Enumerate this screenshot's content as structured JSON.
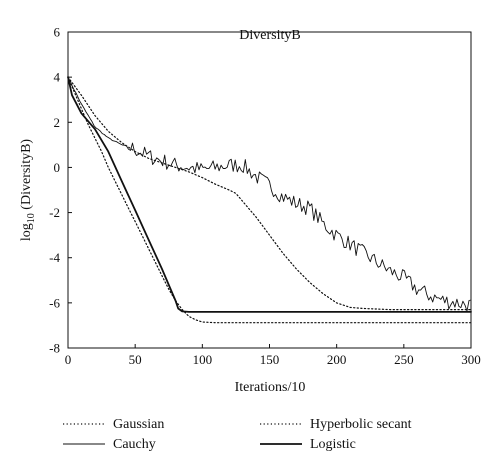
{
  "chart_data": {
    "type": "line",
    "title": "DiversityB",
    "xlabel": "Iterations/10",
    "ylabel_prefix": "log",
    "ylabel_sub": "10",
    "ylabel_suffix": " (DiversityB)",
    "xlim": [
      0,
      300
    ],
    "ylim": [
      -8,
      6
    ],
    "xticks": [
      0,
      50,
      100,
      150,
      200,
      250,
      300
    ],
    "yticks": [
      -8,
      -6,
      -4,
      -2,
      0,
      2,
      4,
      6
    ],
    "grid": false,
    "legend_position": "bottom",
    "series": [
      {
        "name": "Gaussian",
        "style": "dotted",
        "width": 1.2,
        "x": [
          0,
          5,
          10,
          15,
          20,
          25,
          30,
          35,
          40,
          45,
          50,
          55,
          60,
          65,
          70,
          75,
          80,
          85,
          90,
          95,
          100,
          110,
          125,
          150,
          200,
          250,
          300
        ],
        "y": [
          4.0,
          3.3,
          2.6,
          1.9,
          1.3,
          0.7,
          0.0,
          -0.6,
          -1.2,
          -1.8,
          -2.4,
          -3.0,
          -3.6,
          -4.2,
          -4.8,
          -5.4,
          -5.9,
          -6.3,
          -6.6,
          -6.75,
          -6.85,
          -6.88,
          -6.88,
          -6.88,
          -6.88,
          -6.88,
          -6.88
        ]
      },
      {
        "name": "Cauchy",
        "style": "solid",
        "width": 0.9,
        "noisy": true,
        "x": [
          0,
          10,
          20,
          30,
          40,
          50,
          60,
          70,
          80,
          90,
          100,
          110,
          120,
          130,
          140,
          150,
          160,
          170,
          180,
          190,
          200,
          210,
          220,
          230,
          240,
          250,
          260,
          270,
          280,
          290,
          300
        ],
        "y": [
          4.0,
          2.8,
          1.8,
          1.3,
          1.0,
          0.8,
          0.5,
          0.3,
          0.1,
          0.0,
          -0.1,
          0.0,
          0.1,
          0.1,
          -0.4,
          -0.8,
          -1.3,
          -1.6,
          -1.8,
          -2.5,
          -3.0,
          -3.4,
          -3.8,
          -4.2,
          -4.6,
          -4.9,
          -5.4,
          -5.7,
          -5.9,
          -6.0,
          -6.1
        ]
      },
      {
        "name": "Hyperbolic secant",
        "style": "dotted",
        "width": 1.2,
        "x": [
          0,
          10,
          20,
          30,
          40,
          50,
          60,
          70,
          80,
          90,
          100,
          110,
          120,
          125,
          130,
          140,
          150,
          160,
          170,
          180,
          190,
          200,
          210,
          220,
          240,
          260,
          280,
          300
        ],
        "y": [
          4.0,
          3.2,
          2.3,
          1.6,
          1.1,
          0.7,
          0.4,
          0.2,
          0.0,
          -0.2,
          -0.45,
          -0.75,
          -1.0,
          -1.15,
          -1.5,
          -2.2,
          -3.0,
          -3.8,
          -4.5,
          -5.1,
          -5.6,
          -6.0,
          -6.2,
          -6.25,
          -6.3,
          -6.3,
          -6.3,
          -6.3
        ]
      },
      {
        "name": "Logistic",
        "style": "solid",
        "width": 1.8,
        "x": [
          0,
          3,
          10,
          20,
          30,
          40,
          50,
          60,
          70,
          80,
          82,
          85,
          90,
          100,
          150,
          200,
          250,
          300
        ],
        "y": [
          4.0,
          3.2,
          2.4,
          1.7,
          0.7,
          -0.6,
          -1.9,
          -3.2,
          -4.5,
          -5.9,
          -6.25,
          -6.38,
          -6.4,
          -6.4,
          -6.4,
          -6.4,
          -6.4,
          -6.4
        ]
      }
    ]
  }
}
